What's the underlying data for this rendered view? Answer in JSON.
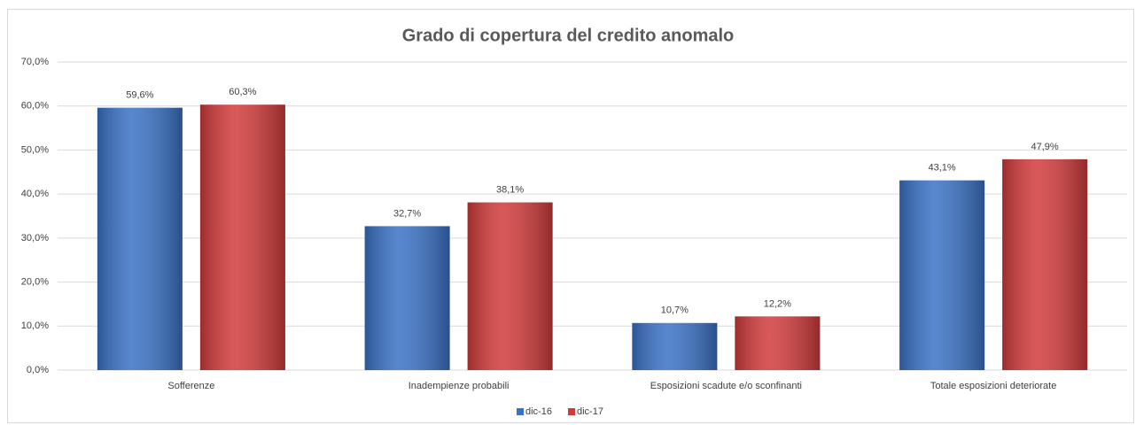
{
  "chart_data": {
    "type": "bar",
    "title": "Grado di copertura del credito anomalo",
    "categories": [
      "Sofferenze",
      "Inadempienze probabili",
      "Esposizioni scadute e/o sconfinanti",
      "Totale esposizioni deteriorate"
    ],
    "series": [
      {
        "name": "dic-16",
        "color": "#3a72c6",
        "values": [
          59.6,
          32.7,
          10.7,
          43.1
        ],
        "value_labels": [
          "59,6%",
          "32,7%",
          "10,7%",
          "43,1%"
        ]
      },
      {
        "name": "dic-17",
        "color": "#d23b3b",
        "values": [
          60.3,
          38.1,
          12.2,
          47.9
        ],
        "value_labels": [
          "60,3%",
          "38,1%",
          "12,2%",
          "47,9%"
        ]
      }
    ],
    "ylim": [
      0,
      70
    ],
    "yticks": [
      {
        "value": 0,
        "label": "0,0%"
      },
      {
        "value": 10,
        "label": "10,0%"
      },
      {
        "value": 20,
        "label": "20,0%"
      },
      {
        "value": 30,
        "label": "30,0%"
      },
      {
        "value": 40,
        "label": "40,0%"
      },
      {
        "value": 50,
        "label": "50,0%"
      },
      {
        "value": 60,
        "label": "60,0%"
      },
      {
        "value": 70,
        "label": "70,0%"
      }
    ],
    "grid": true,
    "legend": "bottom"
  }
}
